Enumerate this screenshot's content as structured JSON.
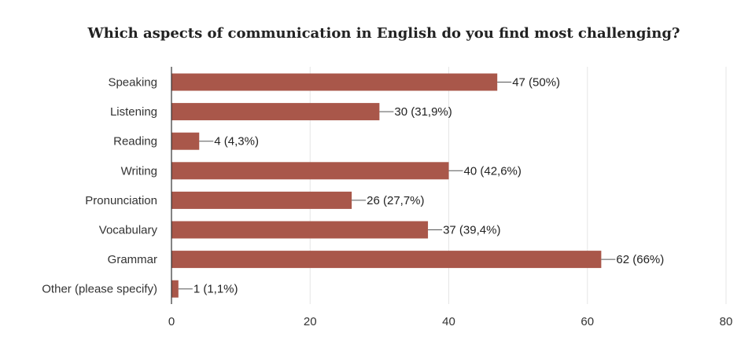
{
  "chart_data": {
    "type": "bar",
    "orientation": "horizontal",
    "title": "Which aspects of communication in English do you find most challenging?",
    "xlabel": "",
    "ylabel": "",
    "categories": [
      "Speaking",
      "Listening",
      "Reading",
      "Writing",
      "Pronunciation",
      "Vocabulary",
      "Grammar",
      "Other (please specify)"
    ],
    "values": [
      47,
      30,
      4,
      40,
      26,
      37,
      62,
      1
    ],
    "data_labels": [
      "47 (50%)",
      "30 (31,9%)",
      "4 (4,3%)",
      "40 (42,6%)",
      "26 (27,7%)",
      "37 (39,4%)",
      "62 (66%)",
      "1 (1,1%)"
    ],
    "xlim": [
      0,
      80
    ],
    "xticks": [
      0,
      20,
      40,
      60,
      80
    ],
    "grid": true,
    "legend": "none",
    "colors": {
      "bar": "#a9574a",
      "grid": "#e6e6e6",
      "axis": "#333333",
      "leader": "#555555"
    }
  }
}
